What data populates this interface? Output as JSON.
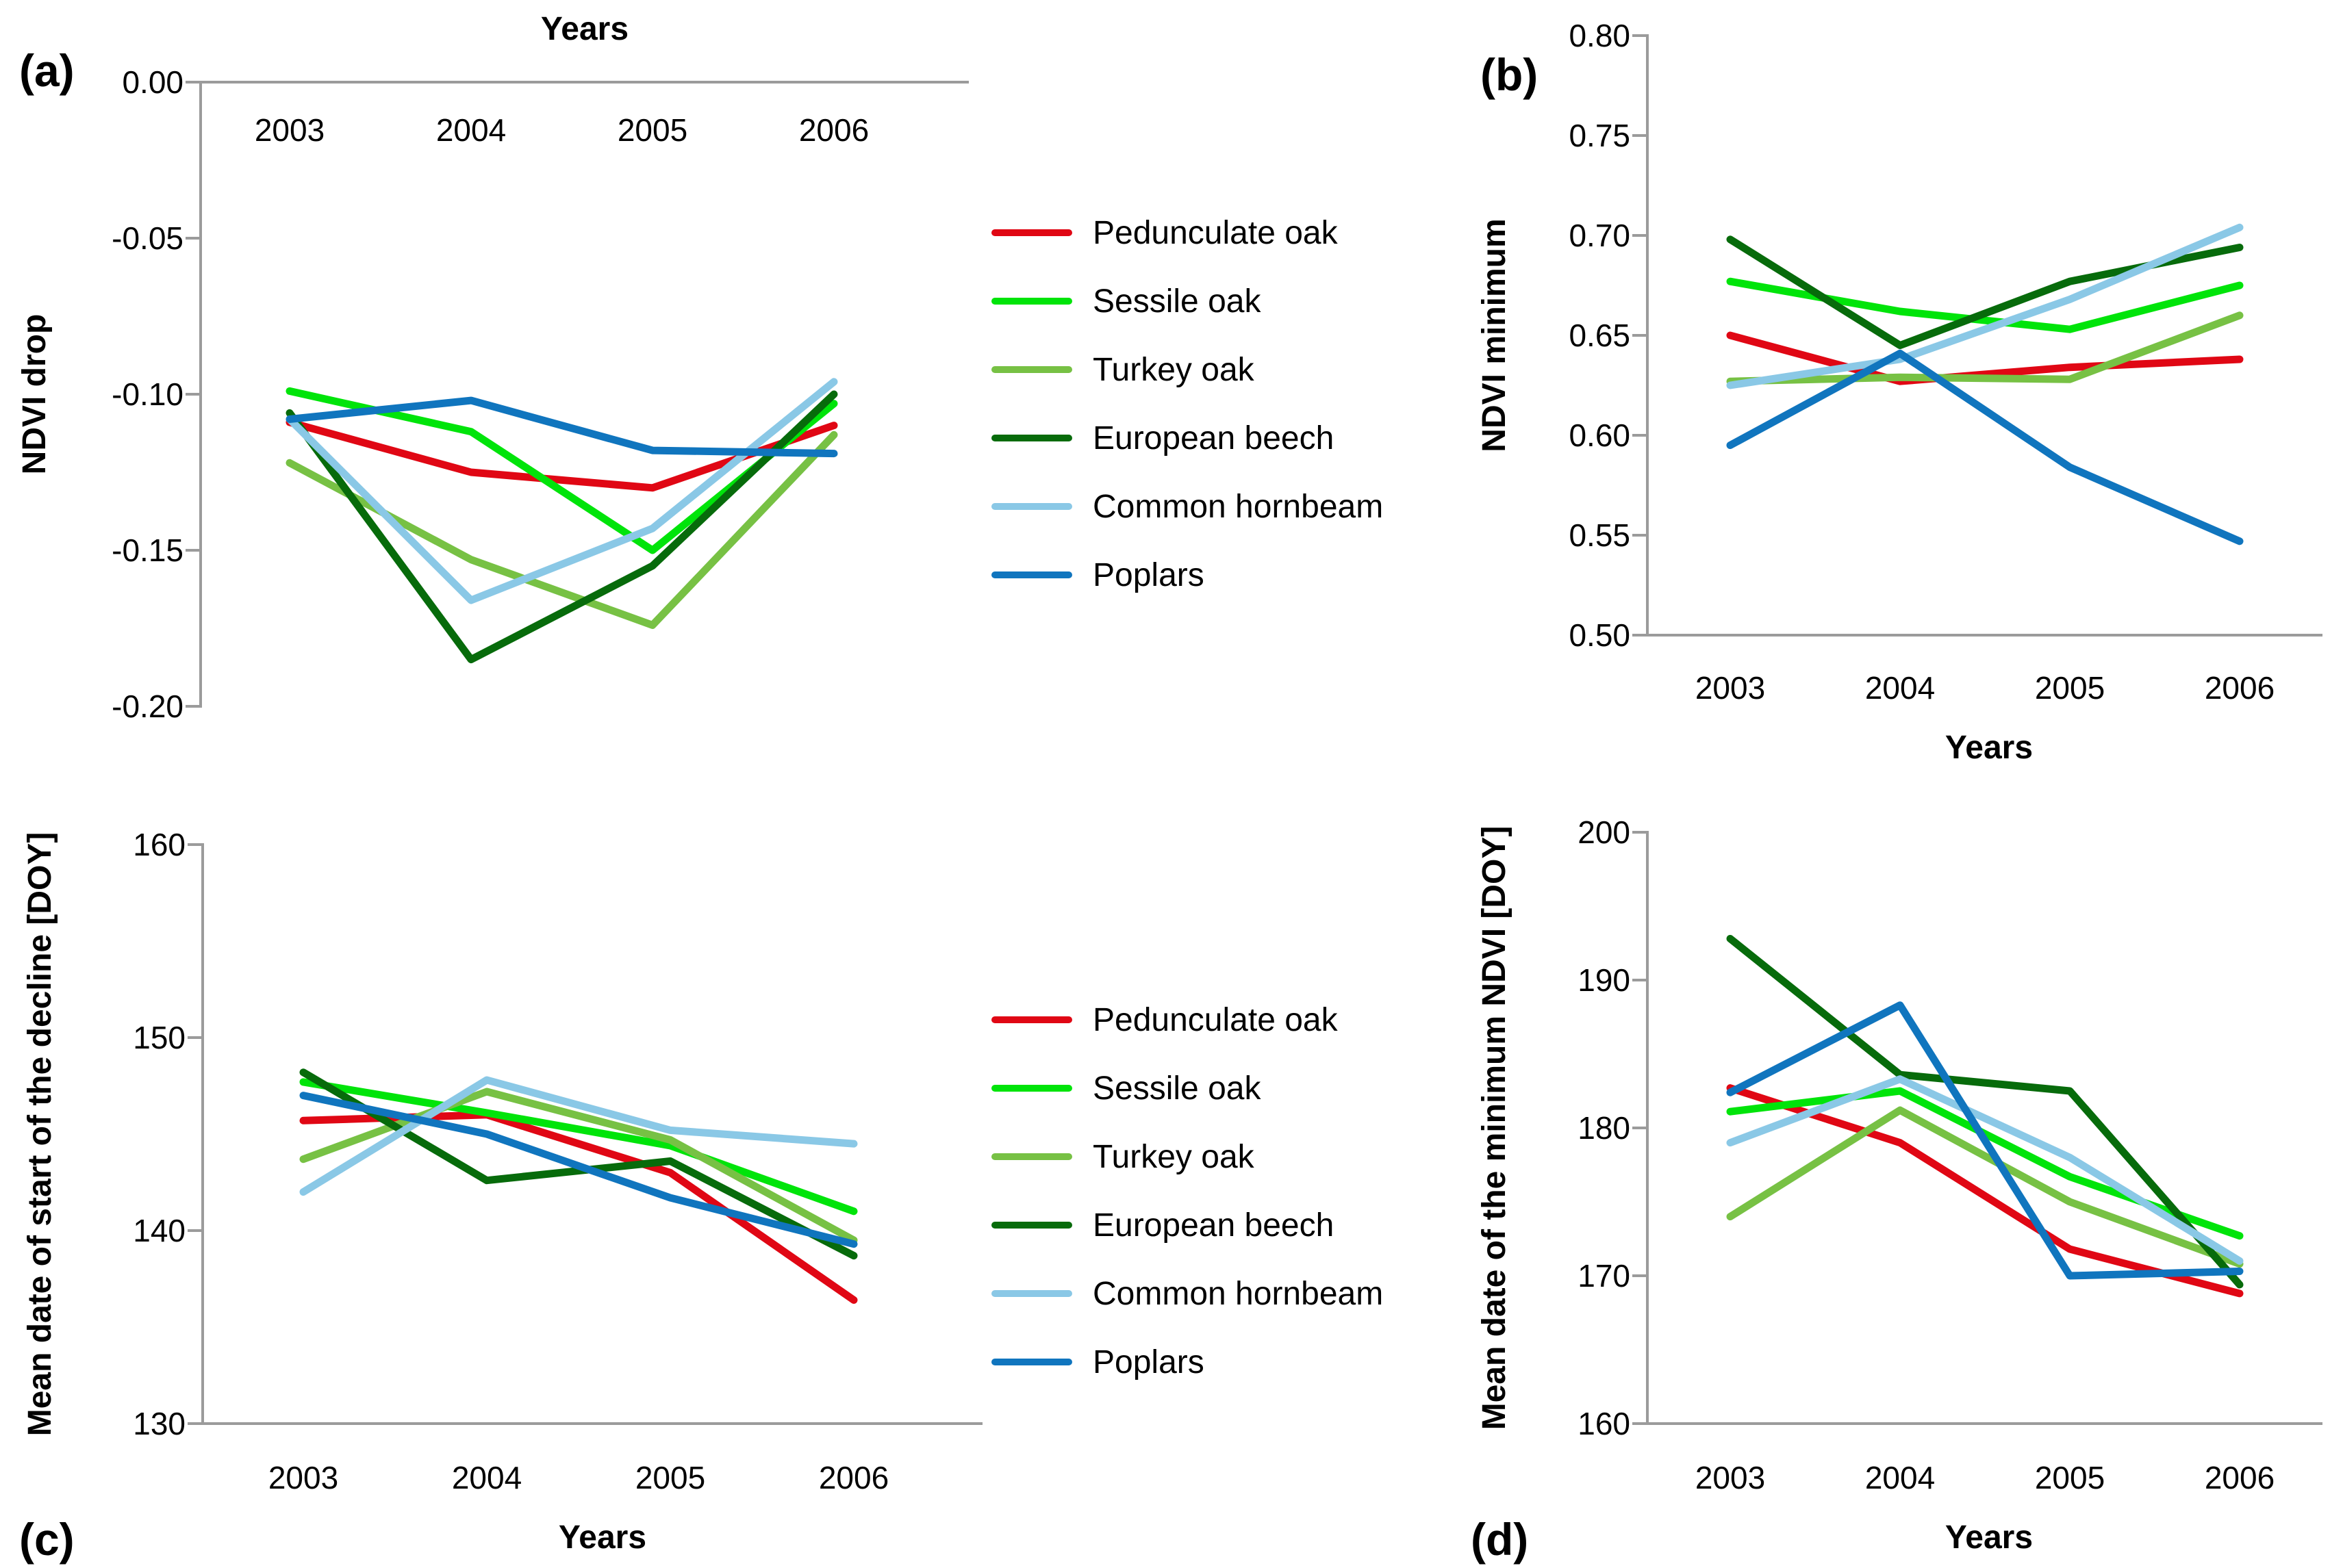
{
  "figure": {
    "background": "#FFFFFF",
    "axis_color": "#9B9B9B",
    "text_color": "#000000",
    "x_axis_title": "Years",
    "panel_letters": [
      "(a)",
      "(b)",
      "(c)",
      "(d)"
    ]
  },
  "legend": {
    "items": [
      {
        "label": "Pedunculate oak",
        "color": "#E00714"
      },
      {
        "label": "Sessile oak",
        "color": "#00E40A"
      },
      {
        "label": "Turkey oak",
        "color": "#77C144"
      },
      {
        "label": "European beech",
        "color": "#076B0B"
      },
      {
        "label": "Common hornbeam",
        "color": "#8AC8E6"
      },
      {
        "label": "Poplars",
        "color": "#1075BE"
      }
    ]
  },
  "chart_data": [
    {
      "panel": "a",
      "type": "line",
      "letter": "(a)",
      "x_title": "Years",
      "x_title_position": "top",
      "y_title": "NDVI drop",
      "categories": [
        "2003",
        "2004",
        "2005",
        "2006"
      ],
      "y_tick_labels": [
        "0.00",
        "-0.05",
        "-0.10",
        "-0.15",
        "-0.20"
      ],
      "ylim": [
        -0.2,
        0.0
      ],
      "grid": false,
      "series": [
        {
          "name": "Pedunculate oak",
          "values": [
            -0.109,
            -0.125,
            -0.13,
            -0.11
          ]
        },
        {
          "name": "Sessile oak",
          "values": [
            -0.099,
            -0.112,
            -0.15,
            -0.103
          ]
        },
        {
          "name": "Turkey oak",
          "values": [
            -0.122,
            -0.153,
            -0.174,
            -0.113
          ]
        },
        {
          "name": "European beech",
          "values": [
            -0.106,
            -0.185,
            -0.155,
            -0.1
          ]
        },
        {
          "name": "Common hornbeam",
          "values": [
            -0.108,
            -0.166,
            -0.143,
            -0.096
          ]
        },
        {
          "name": "Poplars",
          "values": [
            -0.108,
            -0.102,
            -0.118,
            -0.119
          ]
        }
      ]
    },
    {
      "panel": "b",
      "type": "line",
      "letter": "(b)",
      "x_title": "Years",
      "x_title_position": "bottom",
      "y_title": "NDVI minimum",
      "categories": [
        "2003",
        "2004",
        "2005",
        "2006"
      ],
      "y_tick_labels": [
        "0.80",
        "0.75",
        "0.70",
        "0.65",
        "0.60",
        "0.55",
        "0.50"
      ],
      "ylim": [
        0.5,
        0.8
      ],
      "grid": false,
      "series": [
        {
          "name": "Pedunculate oak",
          "values": [
            0.65,
            0.627,
            0.634,
            0.638
          ]
        },
        {
          "name": "Sessile oak",
          "values": [
            0.677,
            0.662,
            0.653,
            0.675
          ]
        },
        {
          "name": "Turkey oak",
          "values": [
            0.627,
            0.629,
            0.628,
            0.66
          ]
        },
        {
          "name": "European beech",
          "values": [
            0.698,
            0.645,
            0.677,
            0.694
          ]
        },
        {
          "name": "Common hornbeam",
          "values": [
            0.625,
            0.638,
            0.668,
            0.704
          ]
        },
        {
          "name": "Poplars",
          "values": [
            0.595,
            0.641,
            0.584,
            0.547
          ]
        }
      ]
    },
    {
      "panel": "c",
      "type": "line",
      "letter": "(c)",
      "x_title": "Years",
      "x_title_position": "bottom",
      "y_title": "Mean date of start of the decline [DOY]",
      "categories": [
        "2003",
        "2004",
        "2005",
        "2006"
      ],
      "y_tick_labels": [
        "160",
        "150",
        "140",
        "130"
      ],
      "ylim": [
        130,
        160
      ],
      "grid": false,
      "series": [
        {
          "name": "Pedunculate oak",
          "values": [
            145.7,
            146.0,
            143.0,
            136.4
          ]
        },
        {
          "name": "Sessile oak",
          "values": [
            147.7,
            146.1,
            144.4,
            141.0
          ]
        },
        {
          "name": "Turkey oak",
          "values": [
            143.7,
            147.2,
            144.7,
            139.5
          ]
        },
        {
          "name": "European beech",
          "values": [
            148.2,
            142.6,
            143.6,
            138.7
          ]
        },
        {
          "name": "Common hornbeam",
          "values": [
            142.0,
            147.8,
            145.2,
            144.5
          ]
        },
        {
          "name": "Poplars",
          "values": [
            147.0,
            145.0,
            141.7,
            139.3
          ]
        }
      ]
    },
    {
      "panel": "d",
      "type": "line",
      "letter": "(d)",
      "x_title": "Years",
      "x_title_position": "bottom",
      "y_title": "Mean date of the minimum NDVI [DOY]",
      "categories": [
        "2003",
        "2004",
        "2005",
        "2006"
      ],
      "y_tick_labels": [
        "200",
        "190",
        "180",
        "170",
        "160"
      ],
      "ylim": [
        160,
        200
      ],
      "grid": false,
      "series": [
        {
          "name": "Pedunculate oak",
          "values": [
            182.7,
            179.0,
            171.8,
            168.8
          ]
        },
        {
          "name": "Sessile oak",
          "values": [
            181.1,
            182.5,
            176.7,
            172.7
          ]
        },
        {
          "name": "Turkey oak",
          "values": [
            174.0,
            181.2,
            175.0,
            170.8
          ]
        },
        {
          "name": "European beech",
          "values": [
            192.8,
            183.6,
            182.5,
            169.4
          ]
        },
        {
          "name": "Common hornbeam",
          "values": [
            179.0,
            183.3,
            178.0,
            171.0
          ]
        },
        {
          "name": "Poplars",
          "values": [
            182.4,
            188.3,
            170.0,
            170.3
          ]
        }
      ]
    }
  ]
}
